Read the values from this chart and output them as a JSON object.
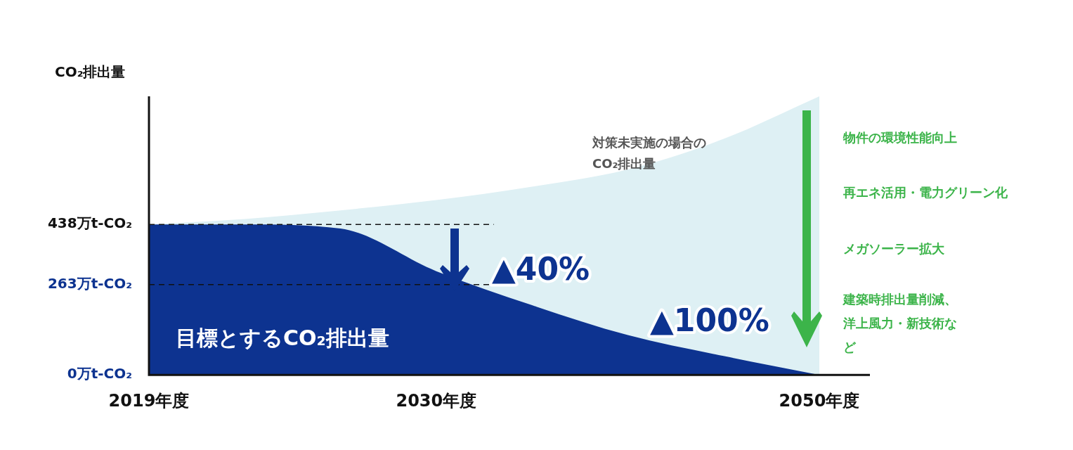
{
  "chart_data": {
    "type": "area",
    "ylabel": "CO₂排出量",
    "categories": [
      "2019年度",
      null,
      null,
      "2030年度",
      null,
      null,
      null,
      "2050年度"
    ],
    "series": [
      {
        "name": "目標とするCO₂排出量",
        "color": "#0d3390",
        "values": [
          438,
          438,
          426,
          302,
          203,
          116,
          55,
          0
        ]
      },
      {
        "name": "対策未実施の場合のCO₂排出量",
        "color": "#def0f4",
        "values": [
          438,
          454,
          479,
          509,
          548,
          598,
          687,
          811
        ]
      }
    ],
    "ylim": [
      0,
      811
    ],
    "yticks": [
      {
        "value": 0,
        "label": "0万t-CO₂"
      },
      {
        "value": 263,
        "label": "263万t-CO₂"
      },
      {
        "value": 438,
        "label": "438万t-CO₂"
      }
    ],
    "ref_lines": [
      {
        "axis": "y",
        "value": 438,
        "line_style": "dashed",
        "color": "#111111"
      },
      {
        "axis": "y",
        "value": 263,
        "line_style": "dashed",
        "color": "#111111"
      }
    ],
    "annotations": [
      "▲40%",
      "▲100%",
      "物件の環境性能向上",
      "再エネ活用・電力グリーン化",
      "メガソーラー拡大",
      "建築時排出量削減、洋上風力・新技術など"
    ],
    "grid": false,
    "legend": false
  }
}
